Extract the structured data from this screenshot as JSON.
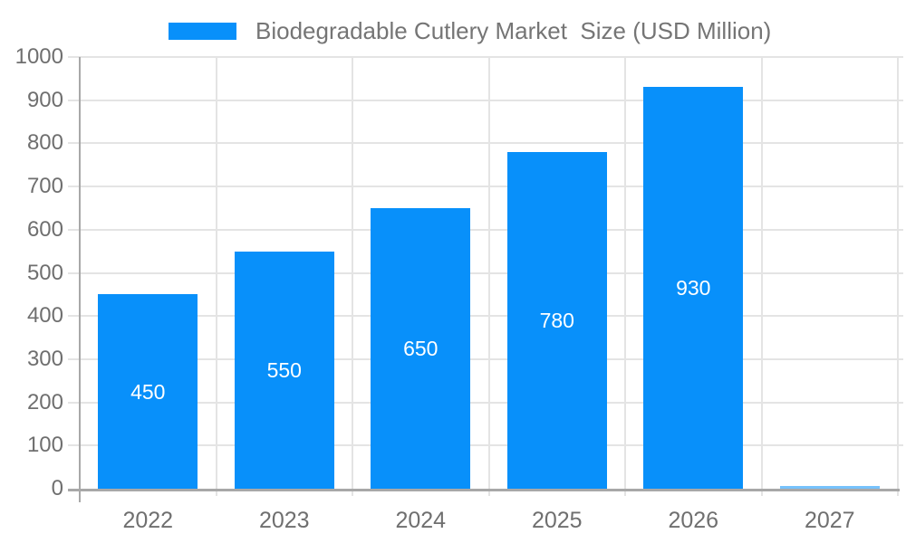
{
  "legend": {
    "label": "Biodegradable Cutlery Market  Size (USD Million)"
  },
  "chart_data": {
    "type": "bar",
    "title": "Biodegradable Cutlery Market  Size (USD Million)",
    "categories": [
      "2022",
      "2023",
      "2024",
      "2025",
      "2026",
      "2027"
    ],
    "values": [
      450,
      550,
      650,
      780,
      930,
      0
    ],
    "bar_labels": [
      "450",
      "550",
      "650",
      "780",
      "930",
      ""
    ],
    "xlabel": "",
    "ylabel": "",
    "ylim": [
      0,
      1000
    ],
    "yticks": [
      0,
      100,
      200,
      300,
      400,
      500,
      600,
      700,
      800,
      900,
      1000
    ],
    "grid": true,
    "legend_position": "top"
  },
  "colors": {
    "bar": "#0890FA",
    "value_label": "#ffffff",
    "grid": "#e4e4e4",
    "axis": "#a8a8a8",
    "axis_text": "#6f6f6f",
    "legend_text": "#757575",
    "background": "#ffffff"
  }
}
